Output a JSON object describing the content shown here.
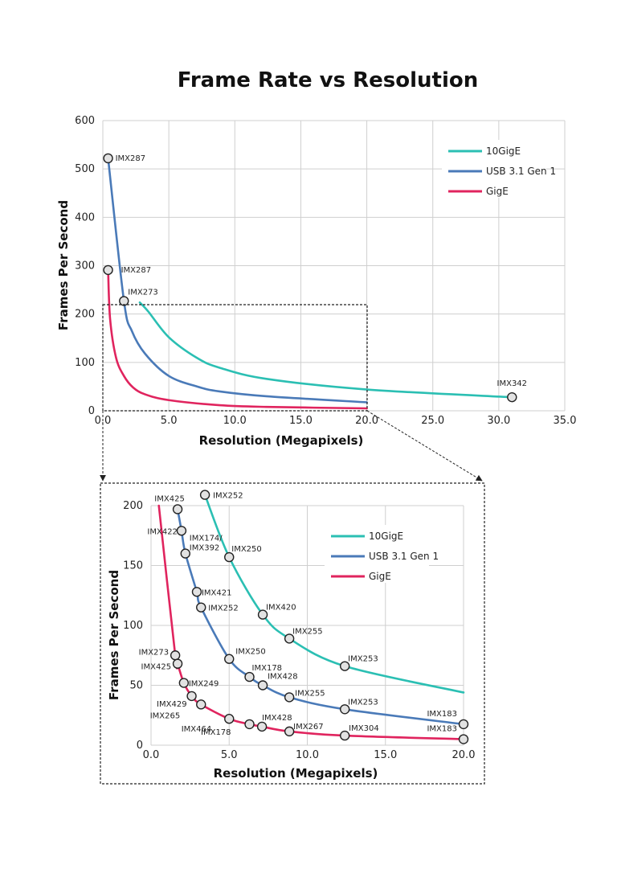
{
  "title": "Frame Rate vs Resolution",
  "colors": {
    "10GigE": "#2bbfb3",
    "USB 3.1 Gen 1": "#4a7ab8",
    "GigE": "#e0245e"
  },
  "chart_data": [
    {
      "type": "line",
      "xlabel": "Resolution (Megapixels)",
      "ylabel": "Frames Per Second",
      "xlim": [
        0,
        35
      ],
      "ylim": [
        0,
        600
      ],
      "xticks": [
        "0.0",
        "5.0",
        "10.0",
        "15.0",
        "20.0",
        "25.0",
        "30.0",
        "35.0"
      ],
      "yticks": [
        "0",
        "100",
        "200",
        "300",
        "400",
        "500",
        "600"
      ],
      "grid": true,
      "legend": "top-right",
      "zoom_region": {
        "x": [
          0,
          20
        ],
        "y": [
          0,
          220
        ]
      },
      "series": [
        {
          "name": "10GigE",
          "points": [
            {
              "x": 2.8,
              "y": 224
            },
            {
              "x": 3.45,
              "y": 205
            },
            {
              "x": 5.0,
              "y": 152
            },
            {
              "x": 7.15,
              "y": 109
            },
            {
              "x": 8.85,
              "y": 89
            },
            {
              "x": 12.4,
              "y": 66
            },
            {
              "x": 20.0,
              "y": 44
            },
            {
              "x": 31.0,
              "y": 28,
              "label": "IMX342"
            }
          ]
        },
        {
          "name": "USB 3.1 Gen 1",
          "points": [
            {
              "x": 0.4,
              "y": 522,
              "label": "IMX287"
            },
            {
              "x": 1.6,
              "y": 227,
              "label": "IMX273"
            },
            {
              "x": 2.2,
              "y": 165
            },
            {
              "x": 3.2,
              "y": 118
            },
            {
              "x": 5.0,
              "y": 72
            },
            {
              "x": 7.15,
              "y": 50
            },
            {
              "x": 8.85,
              "y": 40
            },
            {
              "x": 12.4,
              "y": 30
            },
            {
              "x": 20.0,
              "y": 17.5
            }
          ]
        },
        {
          "name": "GigE",
          "points": [
            {
              "x": 0.4,
              "y": 291,
              "label": "IMX287"
            },
            {
              "x": 0.55,
              "y": 190
            },
            {
              "x": 1.0,
              "y": 110
            },
            {
              "x": 1.6,
              "y": 72
            },
            {
              "x": 2.3,
              "y": 48
            },
            {
              "x": 3.2,
              "y": 34
            },
            {
              "x": 5.0,
              "y": 22
            },
            {
              "x": 8.85,
              "y": 11.5
            },
            {
              "x": 12.4,
              "y": 8
            },
            {
              "x": 20.0,
              "y": 5
            }
          ]
        }
      ]
    },
    {
      "type": "line",
      "xlabel": "Resolution (Megapixels)",
      "ylabel": "Frames Per Second",
      "xlim": [
        0,
        20
      ],
      "ylim": [
        0,
        200
      ],
      "xticks": [
        "0.0",
        "5.0",
        "10.0",
        "15.0",
        "20.0"
      ],
      "yticks": [
        "0",
        "50",
        "100",
        "150",
        "200"
      ],
      "grid": true,
      "legend": "top-right",
      "series": [
        {
          "name": "10GigE",
          "points": [
            {
              "x": 3.45,
              "y": 209,
              "label": "IMX252"
            },
            {
              "x": 5.0,
              "y": 157,
              "label": "IMX250"
            },
            {
              "x": 7.15,
              "y": 109,
              "label": "IMX420"
            },
            {
              "x": 8.85,
              "y": 89,
              "label": "IMX255"
            },
            {
              "x": 12.4,
              "y": 66,
              "label": "IMX253"
            },
            {
              "x": 20.0,
              "y": 44
            }
          ]
        },
        {
          "name": "USB 3.1 Gen 1",
          "points": [
            {
              "x": 1.7,
              "y": 197,
              "label": "IMX425"
            },
            {
              "x": 1.95,
              "y": 179,
              "label": "IMX422"
            },
            {
              "x": 2.2,
              "y": 160,
              "label": "IMX174/\nIMX392"
            },
            {
              "x": 2.93,
              "y": 128,
              "label": "IMX421"
            },
            {
              "x": 3.2,
              "y": 115,
              "label": "IMX252"
            },
            {
              "x": 5.0,
              "y": 72,
              "label": "IMX250"
            },
            {
              "x": 6.3,
              "y": 57,
              "label": "IMX178"
            },
            {
              "x": 7.15,
              "y": 50,
              "label": "IMX428"
            },
            {
              "x": 8.85,
              "y": 40,
              "label": "IMX255"
            },
            {
              "x": 12.4,
              "y": 30,
              "label": "IMX253"
            },
            {
              "x": 20.0,
              "y": 17.5,
              "label": "IMX183"
            }
          ]
        },
        {
          "name": "GigE",
          "points": [
            {
              "x": 0.5,
              "y": 200
            },
            {
              "x": 1.55,
              "y": 75,
              "label": "IMX273"
            },
            {
              "x": 1.7,
              "y": 68,
              "label": "IMX425"
            },
            {
              "x": 2.1,
              "y": 52,
              "label": "IMX249"
            },
            {
              "x": 2.6,
              "y": 41,
              "label": "IMX429"
            },
            {
              "x": 3.2,
              "y": 34,
              "label": "IMX265"
            },
            {
              "x": 5.0,
              "y": 22,
              "label": "IMX464"
            },
            {
              "x": 6.3,
              "y": 17.5,
              "label": "IMX178"
            },
            {
              "x": 7.1,
              "y": 15.5,
              "label": "IMX428"
            },
            {
              "x": 8.85,
              "y": 11.5,
              "label": "IMX267"
            },
            {
              "x": 12.4,
              "y": 8,
              "label": "IMX304"
            },
            {
              "x": 20.0,
              "y": 5,
              "label": "IMX183"
            }
          ]
        }
      ]
    }
  ]
}
